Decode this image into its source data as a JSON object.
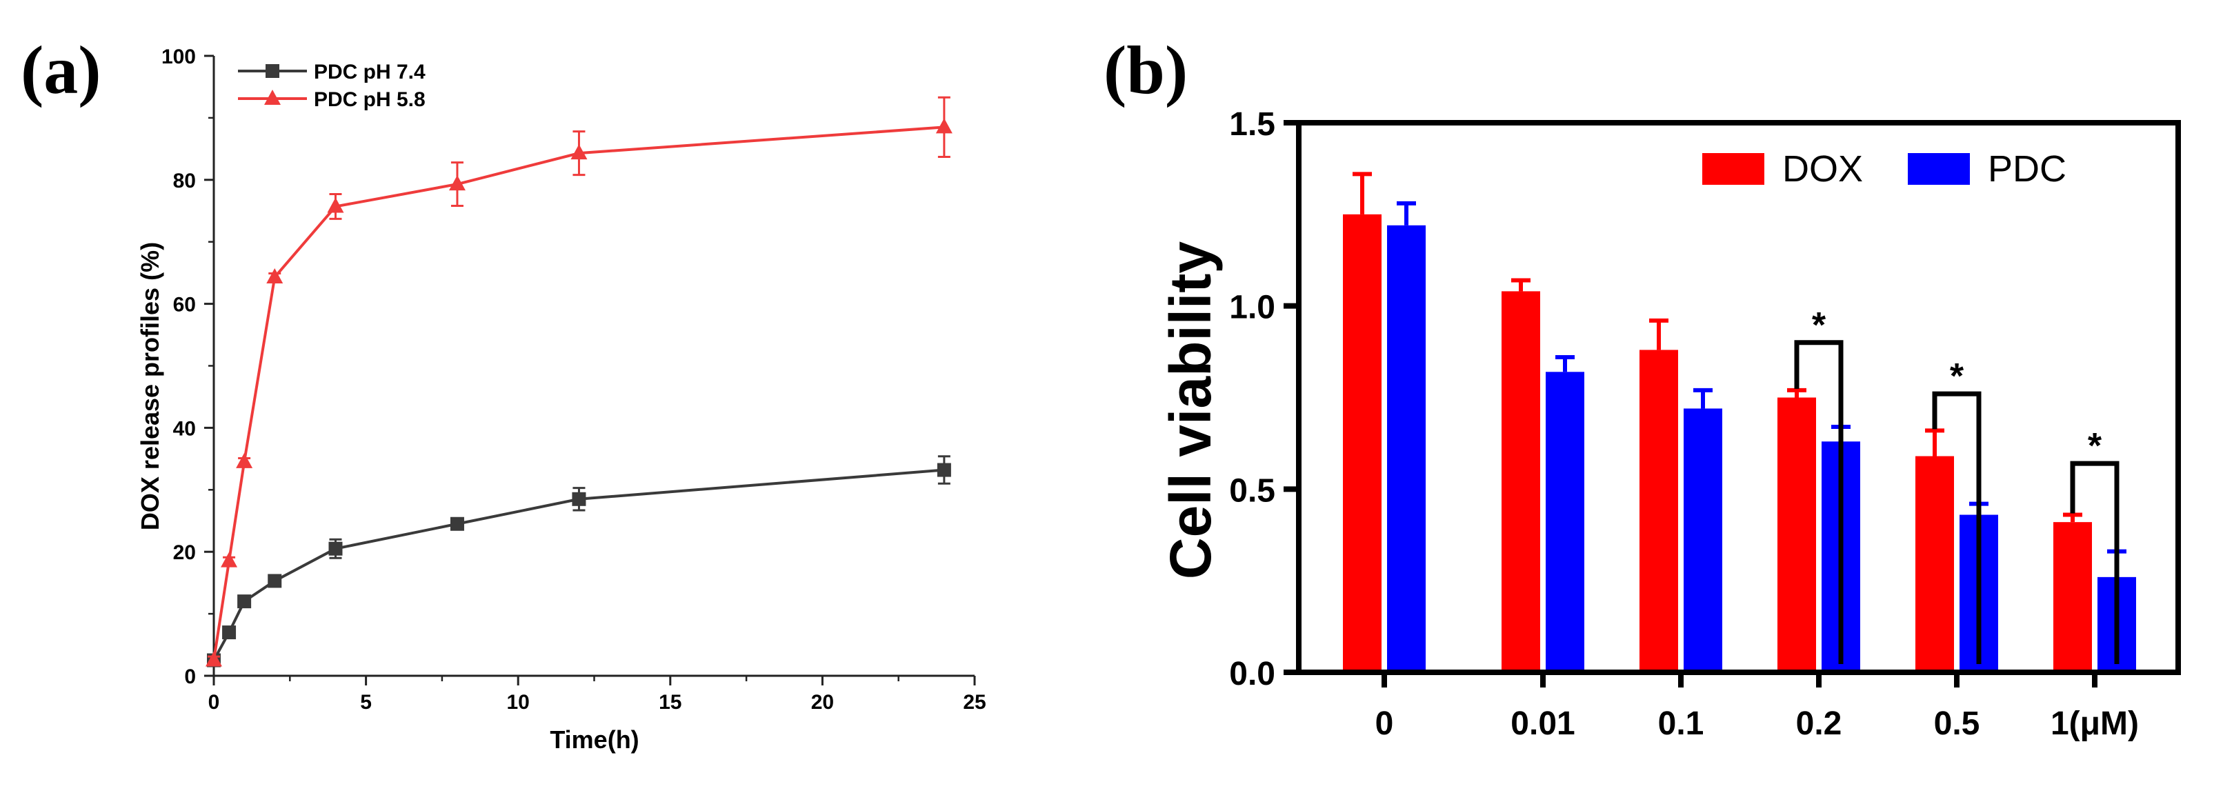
{
  "chart_data": [
    {
      "panel": "(a)",
      "type": "line",
      "xlabel": "Time(h)",
      "ylabel": "DOX release profiles (%)",
      "xlim": [
        0,
        25
      ],
      "ylim": [
        0,
        100
      ],
      "xticks": [
        "0",
        "5",
        "10",
        "15",
        "20",
        "25"
      ],
      "yticks": [
        "0",
        "20",
        "40",
        "60",
        "80",
        "100"
      ],
      "grid": false,
      "legend_position": "top-left",
      "series": [
        {
          "name": "PDC  pH 7.4",
          "color": "#3a3a3a",
          "marker": "square",
          "x": [
            0,
            0.5,
            1,
            2,
            4,
            8,
            12,
            24
          ],
          "y": [
            2.5,
            7,
            12,
            15.3,
            20.5,
            24.5,
            28.5,
            33.2
          ],
          "err": [
            0.6,
            0.6,
            0.6,
            0.6,
            1.5,
            0.6,
            1.8,
            2.2
          ]
        },
        {
          "name": "PDC  pH 5.8",
          "color": "#ef3b3b",
          "marker": "triangle",
          "x": [
            0,
            0.5,
            1,
            2,
            4,
            8,
            12,
            24
          ],
          "y": [
            2.5,
            18.5,
            34.5,
            64.3,
            75.7,
            79.3,
            84.3,
            88.5
          ],
          "err": [
            0.6,
            0.6,
            0.6,
            0.6,
            2.0,
            3.5,
            3.5,
            4.8
          ]
        }
      ]
    },
    {
      "panel": "(b)",
      "type": "bar",
      "ylabel": "Cell viability",
      "ylim": [
        0,
        1.5
      ],
      "yticks": [
        "0.0",
        "0.5",
        "1.0",
        "1.5"
      ],
      "categories": [
        "0",
        "0.01",
        "0.1",
        "0.2",
        "0.5",
        "1(μM)"
      ],
      "grid": false,
      "legend_position": "top-right",
      "series": [
        {
          "name": "DOX",
          "color": "#ff0000",
          "values": [
            1.25,
            1.04,
            0.88,
            0.75,
            0.59,
            0.41
          ],
          "err": [
            0.11,
            0.03,
            0.08,
            0.02,
            0.07,
            0.02
          ]
        },
        {
          "name": "PDC",
          "color": "#0000ff",
          "values": [
            1.22,
            0.82,
            0.72,
            0.63,
            0.43,
            0.26
          ],
          "err": [
            0.06,
            0.04,
            0.05,
            0.04,
            0.03,
            0.07
          ]
        }
      ],
      "significance": [
        {
          "category": 3,
          "label": "*",
          "level": 0.9
        },
        {
          "category": 4,
          "label": "*",
          "level": 0.76
        },
        {
          "category": 5,
          "label": "*",
          "level": 0.57
        }
      ]
    }
  ]
}
